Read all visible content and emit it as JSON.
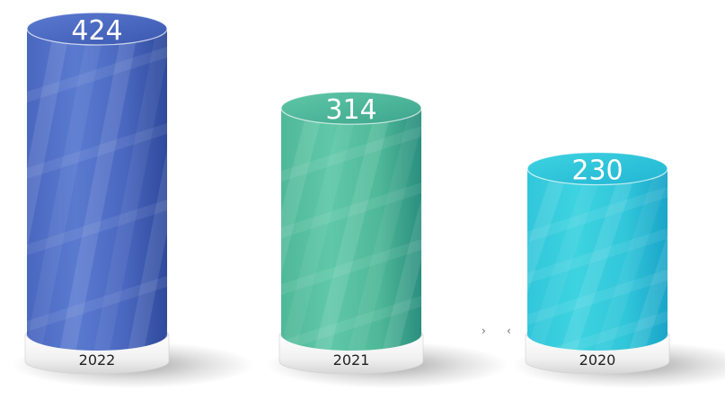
{
  "chart_data": {
    "type": "bar",
    "style": "3d-cylinder",
    "categories": [
      "2022",
      "2021",
      "2020"
    ],
    "values": [
      424,
      314,
      230
    ],
    "value_labels": [
      "424",
      "314",
      "230"
    ],
    "title": "",
    "xlabel": "",
    "ylabel": "",
    "ylim": [
      0,
      424
    ],
    "grid": false,
    "legend": "none",
    "colors": {
      "2022": {
        "top": "#5a7ad0",
        "main": "#4a67bf",
        "dark": "#2f4a9c",
        "rim": "#3c58b0"
      },
      "2021": {
        "top": "#60c8a8",
        "main": "#4fb897",
        "dark": "#2a8f7f",
        "rim": "#3da58c"
      },
      "2020": {
        "top": "#3ed3e0",
        "main": "#31c6da",
        "dark": "#1aa5c8",
        "rim": "#22b5d4"
      }
    }
  }
}
